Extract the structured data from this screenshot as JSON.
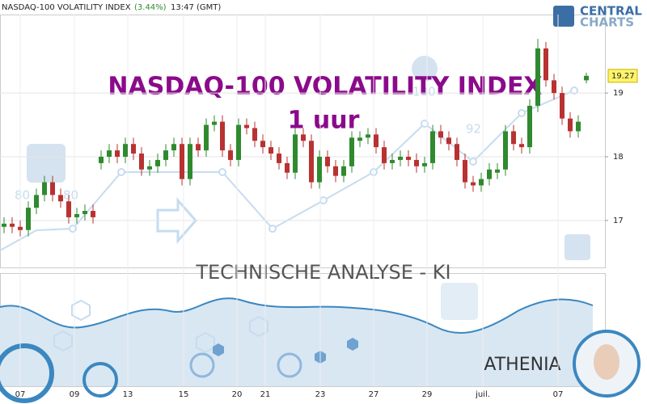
{
  "chart_data": {
    "type": "candlestick",
    "header": {
      "name": "NASDAQ-100 VOLATILITY INDEX",
      "change": "(3.44%)",
      "time": "13:47 (GMT)"
    },
    "title": "NASDAQ-100 VOLATILITY INDEX",
    "subtitle": "1 uur",
    "lower_title": "TECHNISCHE ANALYSE - KI",
    "assistant": "ATHENIA",
    "logo": [
      "CENTRAL",
      "CHARTS"
    ],
    "decor_labels": [
      "80",
      "80",
      "92",
      "100"
    ],
    "x": [
      0,
      1,
      2,
      3,
      4,
      5,
      6,
      7,
      8,
      9,
      10,
      11,
      12,
      13,
      14,
      15,
      16,
      17,
      18,
      19,
      20,
      21,
      22,
      23,
      24,
      25,
      26,
      27,
      28,
      29,
      30,
      31,
      32,
      33,
      34,
      35,
      36,
      37,
      38,
      39,
      40,
      41,
      42,
      43,
      44,
      45,
      46,
      47,
      48,
      49,
      50,
      51,
      52,
      53,
      54,
      55,
      56,
      57,
      58,
      59,
      60,
      61,
      62,
      63,
      64,
      65,
      66,
      67,
      68,
      69,
      70,
      71,
      72
    ],
    "open": [
      16.9,
      16.95,
      16.9,
      16.85,
      17.2,
      17.4,
      17.6,
      17.4,
      17.3,
      17.05,
      17.1,
      17.15,
      17.9,
      18.0,
      18.1,
      18.0,
      18.2,
      18.05,
      17.8,
      17.85,
      17.95,
      18.1,
      18.2,
      17.65,
      18.2,
      18.1,
      18.5,
      18.55,
      18.1,
      17.95,
      18.5,
      18.45,
      18.25,
      18.15,
      18.05,
      17.9,
      17.75,
      18.35,
      18.25,
      17.6,
      18.0,
      17.85,
      17.7,
      17.85,
      18.25,
      18.3,
      18.35,
      18.15,
      17.9,
      17.95,
      18.0,
      17.95,
      17.85,
      17.9,
      18.4,
      18.3,
      18.2,
      17.95,
      17.6,
      17.55,
      17.65,
      17.75,
      17.8,
      18.4,
      18.2,
      18.15,
      18.8,
      19.7,
      19.2,
      19.0,
      18.6,
      18.4,
      19.2
    ],
    "high": [
      17.05,
      17.05,
      17.0,
      17.3,
      17.5,
      17.7,
      17.7,
      17.5,
      17.4,
      17.2,
      17.25,
      17.25,
      18.1,
      18.2,
      18.2,
      18.3,
      18.3,
      18.15,
      17.95,
      18.05,
      18.2,
      18.3,
      18.3,
      18.3,
      18.3,
      18.6,
      18.65,
      18.65,
      18.2,
      18.6,
      18.6,
      18.55,
      18.35,
      18.25,
      18.15,
      18.0,
      18.45,
      18.45,
      18.35,
      18.1,
      18.1,
      17.95,
      17.95,
      18.4,
      18.4,
      18.45,
      18.45,
      18.25,
      18.05,
      18.1,
      18.1,
      18.05,
      18.0,
      18.5,
      18.5,
      18.4,
      18.3,
      18.05,
      17.7,
      17.75,
      17.9,
      17.9,
      18.5,
      18.5,
      18.3,
      18.9,
      19.85,
      19.8,
      19.3,
      19.1,
      18.7,
      18.65,
      19.32
    ],
    "low": [
      16.8,
      16.8,
      16.75,
      16.75,
      17.1,
      17.3,
      17.3,
      17.2,
      16.95,
      16.95,
      17.0,
      16.95,
      17.8,
      17.9,
      17.9,
      17.9,
      17.95,
      17.7,
      17.7,
      17.75,
      17.85,
      18.0,
      17.55,
      17.55,
      18.0,
      18.0,
      18.4,
      18.0,
      17.85,
      17.85,
      18.35,
      18.15,
      18.05,
      17.95,
      17.8,
      17.65,
      17.65,
      18.15,
      17.5,
      17.5,
      17.75,
      17.6,
      17.6,
      17.75,
      18.15,
      18.2,
      18.05,
      17.8,
      17.8,
      17.85,
      17.85,
      17.75,
      17.75,
      17.8,
      18.2,
      18.1,
      17.85,
      17.5,
      17.45,
      17.45,
      17.55,
      17.65,
      17.7,
      18.1,
      18.05,
      18.05,
      18.7,
      19.1,
      18.9,
      18.5,
      18.3,
      18.3,
      19.15
    ],
    "close": [
      16.95,
      16.9,
      16.85,
      17.2,
      17.4,
      17.6,
      17.4,
      17.3,
      17.05,
      17.1,
      17.15,
      17.05,
      18.0,
      18.1,
      18.0,
      18.2,
      18.05,
      17.8,
      17.85,
      17.95,
      18.1,
      18.2,
      17.65,
      18.2,
      18.1,
      18.5,
      18.55,
      18.1,
      17.95,
      18.5,
      18.45,
      18.25,
      18.15,
      18.05,
      17.9,
      17.75,
      18.35,
      18.25,
      17.6,
      18.0,
      17.85,
      17.7,
      17.85,
      18.3,
      18.3,
      18.35,
      18.15,
      17.9,
      17.95,
      18.0,
      17.95,
      17.85,
      17.9,
      18.4,
      18.3,
      18.2,
      17.95,
      17.6,
      17.55,
      17.65,
      17.8,
      17.8,
      18.4,
      18.2,
      18.15,
      18.8,
      19.7,
      19.2,
      19.0,
      18.6,
      18.4,
      18.55,
      19.27
    ],
    "up_color": "#2f8a2f",
    "down_color": "#b83232",
    "last_price": 19.27,
    "xlim": [
      -0.5,
      74.3
    ],
    "ylim": [
      16.25,
      20.46
    ],
    "yticks": [
      17,
      18,
      19
    ],
    "xticks": [
      {
        "value": 2,
        "label": "07"
      },
      {
        "value": 8.7,
        "label": "09"
      },
      {
        "value": 15.3,
        "label": "13"
      },
      {
        "value": 22.2,
        "label": "15"
      },
      {
        "value": 28.8,
        "label": "20"
      },
      {
        "value": 32.3,
        "label": "21"
      },
      {
        "value": 39.1,
        "label": "23"
      },
      {
        "value": 45.7,
        "label": "27"
      },
      {
        "value": 52.3,
        "label": "29"
      },
      {
        "value": 59.2,
        "label": "juil."
      },
      {
        "value": 68.5,
        "label": "07"
      }
    ],
    "grid": true
  }
}
